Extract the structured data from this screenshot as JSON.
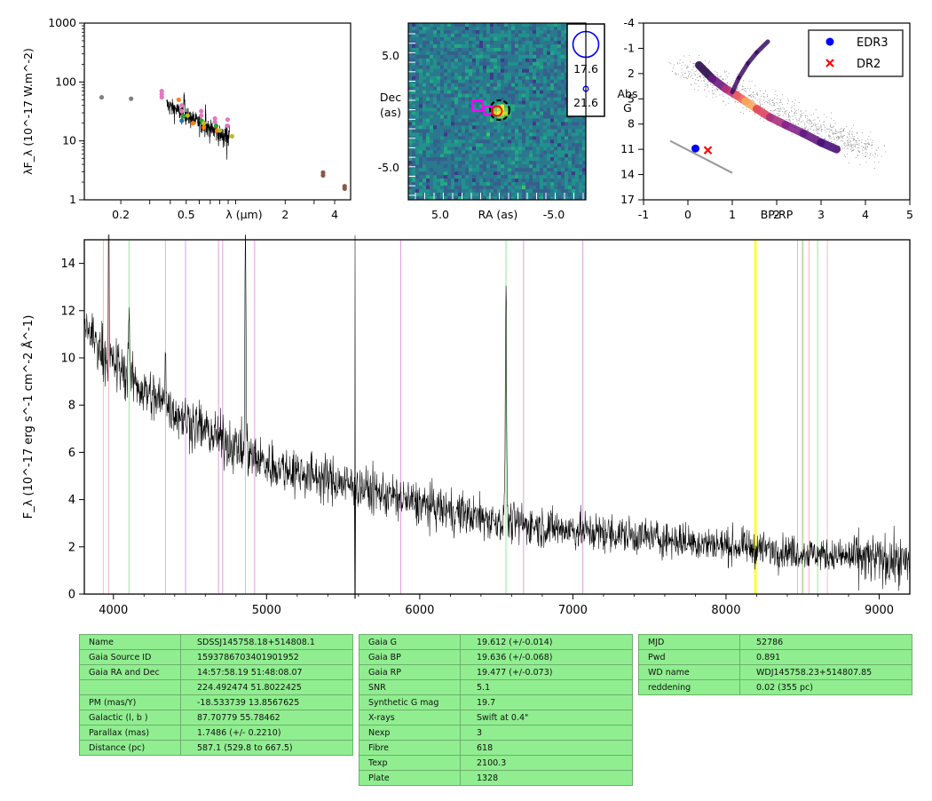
{
  "chart_data": [
    {
      "type": "scatter",
      "panel": "sed",
      "xlabel": "λ (μm)",
      "ylabel": "λF_λ (10^-17 W.m^-2)",
      "xscale": "log",
      "yscale": "log",
      "xlim": [
        0.12,
        5.0
      ],
      "ylim": [
        1,
        1000
      ],
      "xticklabels": [
        "0.2",
        "0.5",
        "2",
        "4"
      ],
      "yticklabels": [
        "1",
        "10",
        "100",
        "1000"
      ],
      "series": [
        {
          "color": "#7f7f7f",
          "points": [
            [
              0.153,
              55
            ],
            [
              0.231,
              52
            ]
          ]
        },
        {
          "color": "#e377c2",
          "points": [
            [
              0.355,
              70
            ],
            [
              0.355,
              62
            ],
            [
              0.355,
              55
            ],
            [
              0.469,
              40
            ],
            [
              0.469,
              32
            ],
            [
              0.617,
              32
            ],
            [
              0.617,
              27
            ],
            [
              0.748,
              24
            ],
            [
              0.748,
              21
            ],
            [
              0.893,
              23
            ],
            [
              0.893,
              18
            ]
          ]
        },
        {
          "color": "#ff7f0e",
          "points": [
            [
              0.45,
              50
            ],
            [
              0.55,
              20
            ],
            [
              0.64,
              17
            ],
            [
              0.77,
              15
            ]
          ]
        },
        {
          "color": "#2ca02c",
          "points": [
            [
              0.48,
              26
            ],
            [
              0.62,
              22
            ],
            [
              0.76,
              18
            ]
          ]
        },
        {
          "color": "#1f77b4",
          "points": [
            [
              0.47,
              22
            ]
          ]
        },
        {
          "color": "#bcbd22",
          "points": [
            [
              0.51,
              27
            ],
            [
              0.64,
              20
            ],
            [
              0.8,
              15
            ],
            [
              0.95,
              12
            ]
          ]
        },
        {
          "color": "#8c564b",
          "points": [
            [
              3.4,
              2.9
            ],
            [
              3.4,
              2.6
            ],
            [
              4.6,
              1.7
            ],
            [
              4.6,
              1.55
            ]
          ]
        }
      ]
    },
    {
      "type": "heatmap",
      "panel": "image",
      "xlabel": "RA (as)",
      "ylabel": "Dec\n(as)",
      "xticklabels": [
        "5.0",
        "-5.0"
      ],
      "yticklabels": [
        "5.0",
        "-5.0"
      ],
      "legend_labels": [
        "17.6",
        "21.6"
      ]
    },
    {
      "type": "scatter",
      "panel": "cmd",
      "xlabel": "BP-RP",
      "ylabel": "Abs\nG",
      "xlim": [
        -1,
        5
      ],
      "ylim": [
        17,
        -4
      ],
      "xticklabels": [
        "-1",
        "0",
        "1",
        "2",
        "3",
        "4",
        "5"
      ],
      "yticklabels": [
        "-4",
        "-1",
        "2",
        "5",
        "8",
        "11",
        "14",
        "17"
      ],
      "legend": [
        {
          "name": "EDR3",
          "color": "#0000ff",
          "marker": "circle",
          "bp_rp": 0.17,
          "abs_g": 10.9
        },
        {
          "name": "DR2",
          "color": "#ff0000",
          "marker": "x",
          "bp_rp": 0.45,
          "abs_g": 11.1
        }
      ]
    },
    {
      "type": "line",
      "panel": "spectrum",
      "xlabel": "",
      "ylabel": "F_λ (10^-17 erg s^-1 cm^-2 Å^-1)",
      "xlim": [
        3810,
        9200
      ],
      "ylim": [
        0,
        15
      ],
      "xticklabels": [
        "4000",
        "5000",
        "6000",
        "7000",
        "8000",
        "9000"
      ],
      "yticklabels": [
        "0",
        "2",
        "4",
        "6",
        "8",
        "10",
        "12",
        "14"
      ],
      "continuum_anchors": [
        [
          3810,
          11.5
        ],
        [
          3900,
          10.5
        ],
        [
          4000,
          9.8
        ],
        [
          4200,
          8.6
        ],
        [
          4500,
          7.3
        ],
        [
          4800,
          6.2
        ],
        [
          5000,
          5.5
        ],
        [
          5500,
          4.7
        ],
        [
          6000,
          3.8
        ],
        [
          6500,
          3.1
        ],
        [
          7000,
          2.7
        ],
        [
          7500,
          2.4
        ],
        [
          8000,
          2.05
        ],
        [
          8500,
          1.75
        ],
        [
          9000,
          1.45
        ],
        [
          9200,
          1.3
        ]
      ],
      "emission_lines": [
        [
          4862,
          10.5,
          5
        ],
        [
          4102,
          3.0,
          6
        ],
        [
          4340,
          2.5,
          6
        ],
        [
          6563,
          10.0,
          6
        ]
      ],
      "spikes": [
        [
          5577,
          15
        ],
        [
          3970,
          15
        ],
        [
          5578,
          -3.0
        ]
      ],
      "vlines_pink": [
        3934,
        3969,
        8498,
        8542,
        8662
      ],
      "vlines_green": [
        4102,
        4340,
        4862,
        6563,
        8467,
        8503,
        8598
      ],
      "vlines_violet": [
        4471,
        4686,
        4713,
        4922,
        5876,
        6678,
        7065
      ],
      "vband_yellow": [
        8183,
        8195
      ]
    }
  ],
  "tables": {
    "left": [
      [
        "Name",
        "SDSSJ145758.18+514808.1"
      ],
      [
        "Gaia Source ID",
        "1593786703401901952"
      ],
      [
        "Gaia RA and Dec",
        "14:57:58.19    51:48:08.07"
      ],
      [
        "",
        "224.492474    51.8022425"
      ],
      [
        "PM (mas/Y)",
        "-18.533739    13.8567625"
      ],
      [
        "Galactic (l, b )",
        "87.70779    55.78462"
      ],
      [
        "Parallax (mas)",
        "1.7486 (+/- 0.2210)"
      ],
      [
        "Distance (pc)",
        "587.1 (529.8 to 667.5)"
      ]
    ],
    "middle": [
      [
        "Gaia G",
        "19.612 (+/-0.014)"
      ],
      [
        "Gaia BP",
        "19.636 (+/-0.068)"
      ],
      [
        "Gaia RP",
        "19.477 (+/-0.073)"
      ],
      [
        "SNR",
        "5.1"
      ],
      [
        "Synthetic G mag",
        "19.7"
      ],
      [
        "X-rays",
        "Swift at 0.4\""
      ],
      [
        "Nexp",
        "3"
      ],
      [
        "Fibre",
        "618"
      ],
      [
        "Texp",
        "2100.3"
      ],
      [
        "Plate",
        "1328"
      ]
    ],
    "right": [
      [
        "MJD",
        "52786"
      ],
      [
        "Pwd",
        "0.891"
      ],
      [
        "WD name",
        "WDJ145758.23+514807.85"
      ],
      [
        "reddening",
        "0.02 (355 pc)"
      ]
    ]
  }
}
